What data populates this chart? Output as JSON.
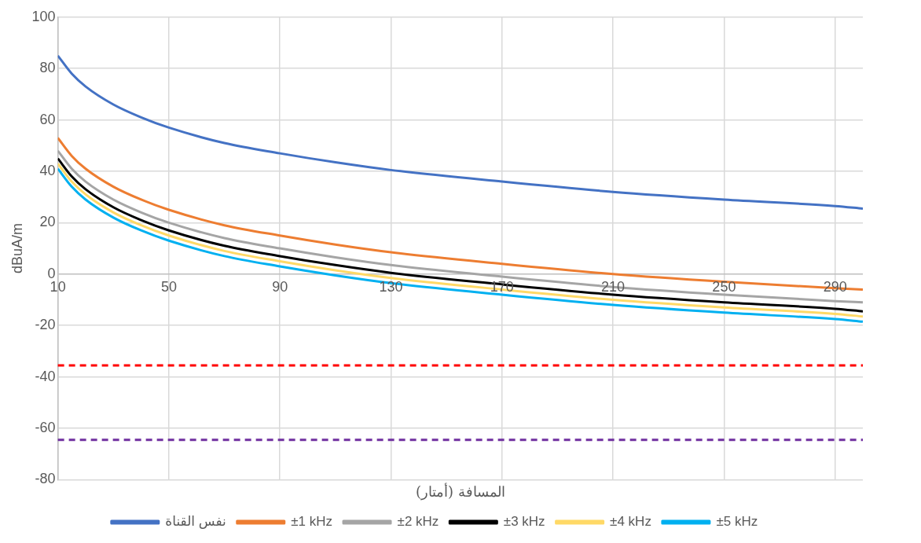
{
  "chart_data": {
    "type": "line",
    "xlabel": "المسافة (أمتار)",
    "ylabel": "dBuA/m",
    "x": [
      10,
      15,
      20,
      30,
      40,
      50,
      70,
      90,
      110,
      130,
      170,
      210,
      250,
      290,
      300
    ],
    "series": [
      {
        "name": "نفس القناة",
        "color": "#4472c4",
        "values": [
          85,
          78,
          73,
          66,
          61,
          57,
          51,
          47,
          43.5,
          40.5,
          36,
          32,
          29,
          26.5,
          25.5
        ]
      },
      {
        "name": "±1 kHz",
        "color": "#ed7d31",
        "values": [
          53,
          46,
          41,
          34,
          29,
          25,
          19,
          15,
          11.5,
          8.5,
          4,
          0,
          -3,
          -5.5,
          -6
        ]
      },
      {
        "name": "±2 kHz",
        "color": "#a5a5a5",
        "values": [
          48,
          41,
          36,
          29,
          24,
          20,
          14,
          10,
          6.5,
          3.5,
          -1,
          -5,
          -8,
          -10.5,
          -11
        ]
      },
      {
        "name": "±3 kHz",
        "color": "#000000",
        "values": [
          45,
          38,
          33,
          26,
          21,
          17,
          11,
          7,
          3.5,
          0.5,
          -4,
          -8,
          -11,
          -13.5,
          -14.5
        ]
      },
      {
        "name": "±4 kHz",
        "color": "#ffd966",
        "values": [
          43,
          36,
          31,
          24,
          19,
          15,
          9,
          5,
          1.5,
          -1.5,
          -6,
          -10,
          -13,
          -15.5,
          -16.5
        ]
      },
      {
        "name": "±5 kHz",
        "color": "#00b0f0",
        "values": [
          41,
          34,
          29,
          22,
          17,
          13,
          7,
          3,
          -0.5,
          -3.5,
          -8,
          -12,
          -15,
          -17.5,
          -18.5
        ]
      }
    ],
    "xlim": [
      10,
      300
    ],
    "xticks": [
      10,
      50,
      90,
      130,
      170,
      210,
      250,
      290
    ],
    "ylim": [
      -80,
      100
    ],
    "yticks": [
      -80,
      -60,
      -40,
      -20,
      0,
      20,
      40,
      60,
      80,
      100
    ],
    "ref_lines": [
      {
        "axis": "y",
        "value": -35.5,
        "color": "#ff0000",
        "line_style": "dashed"
      },
      {
        "axis": "y",
        "value": -64.5,
        "color": "#7030a0",
        "line_style": "dashed"
      }
    ],
    "grid": true,
    "legend": "bottom",
    "marker": "none",
    "line_style": "solid"
  }
}
